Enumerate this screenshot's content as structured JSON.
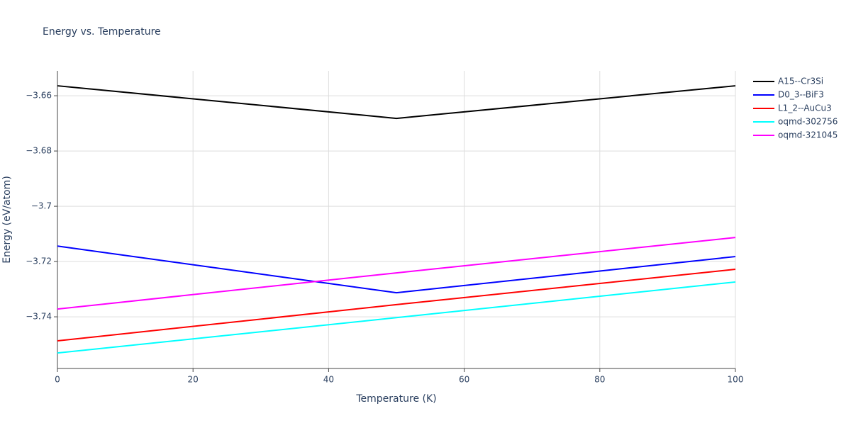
{
  "chart_data": {
    "type": "line",
    "title": "Energy vs. Temperature",
    "x_label": "Temperature (K)",
    "y_label": "Energy (eV/atom)",
    "x": [
      0,
      50,
      100
    ],
    "series": [
      {
        "name": "A15--Cr3Si",
        "color": "#000000",
        "values": [
          -3.6564,
          -3.6682,
          -3.6564
        ]
      },
      {
        "name": "D0_3--BiF3",
        "color": "#0000ff",
        "values": [
          -3.7144,
          -3.7313,
          -3.7182
        ]
      },
      {
        "name": "L1_2--AuCu3",
        "color": "#ff0000",
        "values": [
          -3.7487,
          -3.7356,
          -3.7228
        ]
      },
      {
        "name": "oqmd-302756",
        "color": "#00ffff",
        "values": [
          -3.7531,
          -3.7403,
          -3.7274
        ]
      },
      {
        "name": "oqmd-321045",
        "color": "#ff00ff",
        "values": [
          -3.7372,
          -3.7241,
          -3.7113
        ]
      }
    ],
    "xlim": [
      0,
      100
    ],
    "xticks": [
      0,
      20,
      40,
      60,
      80,
      100
    ],
    "ylim": [
      -3.7587,
      -3.651
    ],
    "yticks": [
      {
        "value": -3.66,
        "label": "−3.66"
      },
      {
        "value": -3.68,
        "label": "−3.68"
      },
      {
        "value": -3.7,
        "label": "−3.7"
      },
      {
        "value": -3.72,
        "label": "−3.72"
      },
      {
        "value": -3.74,
        "label": "−3.74"
      }
    ],
    "grid": true,
    "legend": "right"
  }
}
